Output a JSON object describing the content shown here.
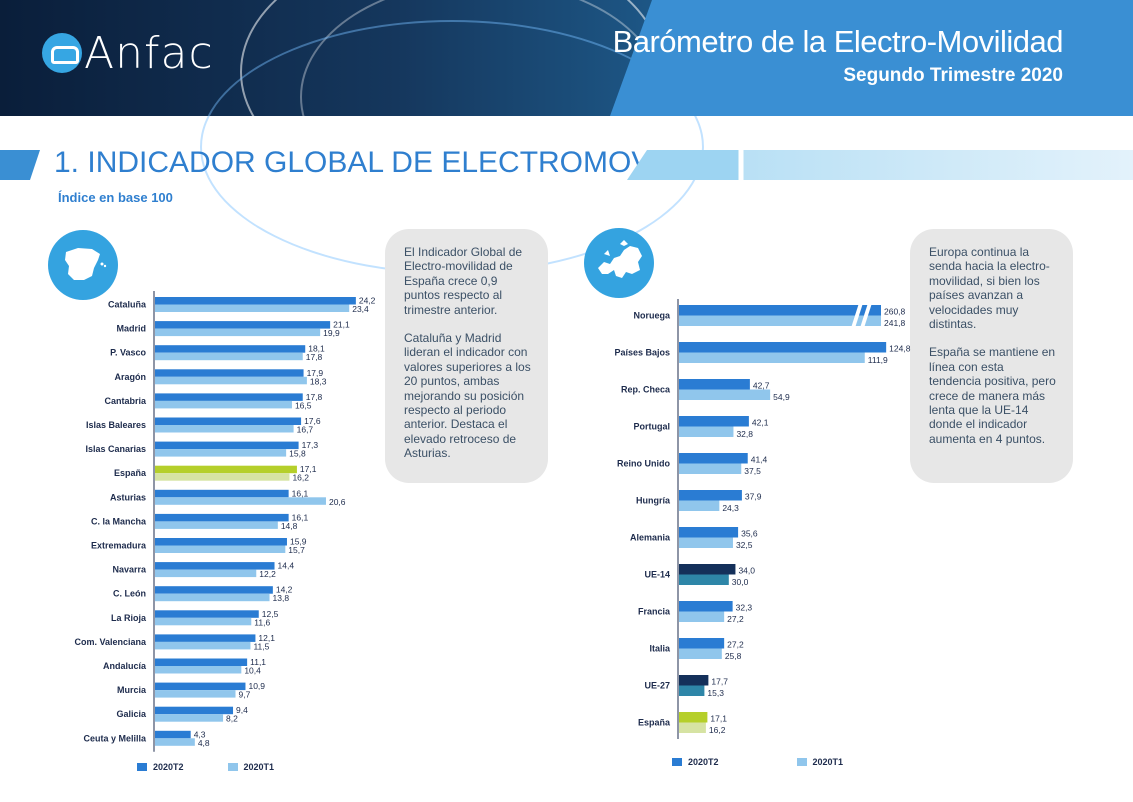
{
  "header": {
    "logo_text": "Anfac",
    "title": "Barómetro de la Electro-Movilidad",
    "subtitle": "Segundo Trimestre 2020"
  },
  "section": {
    "title": "1. INDICADOR GLOBAL DE ELECTROMOVILIDAD",
    "subtitle": "Índice en base 100"
  },
  "colors": {
    "t2": "#2a7cd3",
    "t1": "#90c6ec",
    "spain_t2": "#b5cf2a",
    "spain_t1": "#d6e3a3",
    "eu_t2": "#14305a",
    "eu_t1": "#2e86a8",
    "accent": "#2f7fcf"
  },
  "icons": {
    "spain_map": "spain-map-icon",
    "europe_map": "europe-map-icon"
  },
  "text_box_spain": {
    "p1": "El Indicador Global de Electro-movilidad de España crece 0,9 puntos respecto al trimestre anterior.",
    "p2": "Cataluña y Madrid lideran el indicador con valores superiores a los 20 puntos, ambas mejorando su posición respecto al periodo anterior. Destaca el elevado retroceso de Asturias."
  },
  "text_box_europe": {
    "p1": "Europa continua la senda hacia la electro-movilidad, si bien los países avanzan a velocidades muy distintas.",
    "p2": "España se mantiene en línea con esta tendencia positiva, pero crece de manera más lenta que la UE-14 donde el indicador aumenta en 4 puntos."
  },
  "legend": {
    "t2": "2020T2",
    "t1": "2020T1"
  },
  "chart_data": [
    {
      "type": "bar",
      "orientation": "horizontal",
      "categories": [
        "Cataluña",
        "Madrid",
        "P. Vasco",
        "Aragón",
        "Cantabria",
        "Islas Baleares",
        "Islas Canarias",
        "España",
        "Asturias",
        "C. la Mancha",
        "Extremadura",
        "Navarra",
        "C. León",
        "La Rioja",
        "Com. Valenciana",
        "Andalucía",
        "Murcia",
        "Galicia",
        "Ceuta y Melilla"
      ],
      "series": [
        {
          "name": "2020T2",
          "values": [
            24.2,
            21.1,
            18.1,
            17.9,
            17.8,
            17.6,
            17.3,
            17.1,
            16.1,
            16.1,
            15.9,
            14.4,
            14.2,
            12.5,
            12.1,
            11.1,
            10.9,
            9.4,
            4.3
          ],
          "labels": [
            "24,2",
            "21,1",
            "18,1",
            "17,9",
            "17,8",
            "17,6",
            "17,3",
            "17,1",
            "16,1",
            "16,1",
            "15,9",
            "14,4",
            "14,2",
            "12,5",
            "12,1",
            "11,1",
            "10,9",
            "9,4",
            "4,3"
          ]
        },
        {
          "name": "2020T1",
          "values": [
            23.4,
            19.9,
            17.8,
            18.3,
            16.5,
            16.7,
            15.8,
            16.2,
            20.6,
            14.8,
            15.7,
            12.2,
            13.8,
            11.6,
            11.5,
            10.4,
            9.7,
            8.2,
            4.8
          ],
          "labels": [
            "23,4",
            "19,9",
            "17,8",
            "18,3",
            "16,5",
            "16,7",
            "15,8",
            "16,2",
            "20,6",
            "14,8",
            "15,7",
            "12,2",
            "13,8",
            "11,6",
            "11,5",
            "10,4",
            "9,7",
            "8,2",
            "4,8"
          ]
        }
      ],
      "highlight": {
        "España": "spain"
      },
      "xlim": [
        0,
        26
      ]
    },
    {
      "type": "bar",
      "orientation": "horizontal",
      "categories": [
        "Noruega",
        "Países Bajos",
        "Rep. Checa",
        "Portugal",
        "Reino Unido",
        "Hungría",
        "Alemania",
        "UE-14",
        "Francia",
        "Italia",
        "UE-27",
        "España"
      ],
      "series": [
        {
          "name": "2020T2",
          "values": [
            260.8,
            124.8,
            42.7,
            42.1,
            41.4,
            37.9,
            35.6,
            34.0,
            32.3,
            27.2,
            17.7,
            17.1
          ],
          "labels": [
            "260,8",
            "124,8",
            "42,7",
            "42,1",
            "41,4",
            "37,9",
            "35,6",
            "34,0",
            "32,3",
            "27,2",
            "17,7",
            "17,1"
          ]
        },
        {
          "name": "2020T1",
          "values": [
            241.8,
            111.9,
            54.9,
            32.8,
            37.5,
            24.3,
            32.5,
            30.0,
            27.2,
            25.8,
            15.3,
            16.2
          ],
          "labels": [
            "241,8",
            "111,9",
            "54,9",
            "32,8",
            "37,5",
            "24,3",
            "32,5",
            "30,0",
            "27,2",
            "25,8",
            "15,3",
            "16,2"
          ]
        }
      ],
      "highlight": {
        "UE-14": "eu",
        "UE-27": "eu",
        "España": "spain"
      },
      "axis_break": true,
      "xlim": [
        0,
        130
      ]
    }
  ]
}
